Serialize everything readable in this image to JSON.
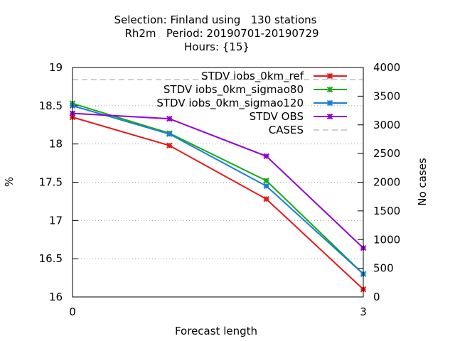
{
  "chart_data": {
    "type": "line",
    "title_lines": [
      "Selection: Finland using   130 stations",
      "Rh2m   Period: 20190701-20190729",
      "Hours: {15}"
    ],
    "xlabel": "Forecast length",
    "ylabel": "%",
    "y2label": "No cases",
    "x_ticks": [
      "0",
      "3"
    ],
    "y_ticks": [
      "16",
      "16.5",
      "17",
      "17.5",
      "18",
      "18.5",
      "19"
    ],
    "y2_ticks": [
      "0",
      "500",
      "1000",
      "1500",
      "2000",
      "2500",
      "3000",
      "3500",
      "4000"
    ],
    "xlim": [
      0,
      3
    ],
    "ylim": [
      16,
      19
    ],
    "y2lim": [
      0,
      4000
    ],
    "grid": "horizontal dotted",
    "legend_position": "top-right",
    "series": [
      {
        "name": "STDV iobs_0km_ref",
        "color": "#e41a1c",
        "axis": "y",
        "x": [
          0,
          1,
          2,
          3
        ],
        "values": [
          18.35,
          17.98,
          17.28,
          16.1
        ]
      },
      {
        "name": "STDV iobs_0km_sigmao80",
        "color": "#1aaa1a",
        "axis": "y",
        "x": [
          0,
          1,
          2,
          3
        ],
        "values": [
          18.53,
          18.14,
          17.52,
          16.3
        ]
      },
      {
        "name": "STDV iobs_0km_sigmao120",
        "color": "#1a7fd4",
        "axis": "y",
        "x": [
          0,
          1,
          2,
          3
        ],
        "values": [
          18.5,
          18.13,
          17.45,
          16.3
        ]
      },
      {
        "name": "STDV OBS",
        "color": "#9400d3",
        "axis": "y",
        "x": [
          0,
          1,
          2,
          3
        ],
        "values": [
          18.4,
          18.33,
          17.84,
          16.64
        ]
      },
      {
        "name": "CASES",
        "color": "#a0a0a0",
        "axis": "y2",
        "dashed": true,
        "x": [
          0,
          1,
          2,
          3
        ],
        "values": [
          3790,
          3790,
          3790,
          3790
        ]
      }
    ]
  }
}
